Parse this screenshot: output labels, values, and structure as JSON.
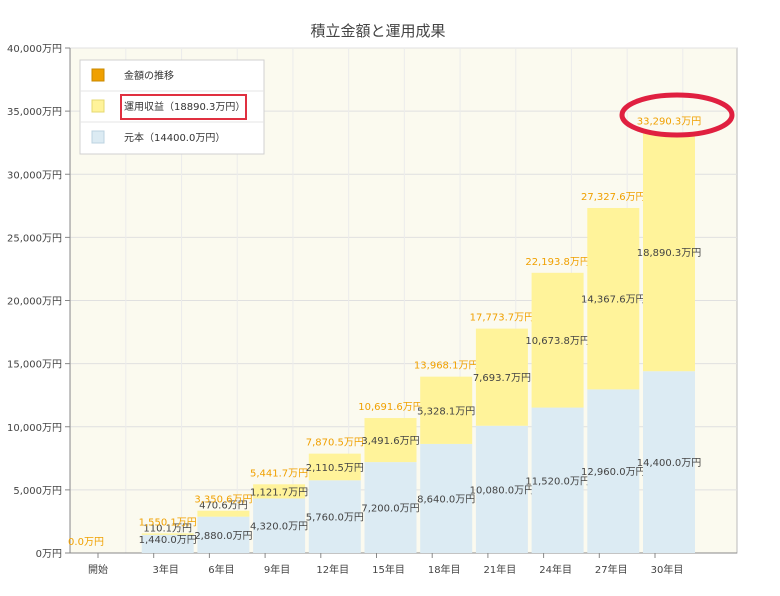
{
  "chart_data": {
    "type": "bar",
    "stacked": true,
    "title": "積立金額と運用成果",
    "categories": [
      "開始",
      "3年目",
      "6年目",
      "9年目",
      "12年目",
      "15年目",
      "18年目",
      "21年目",
      "24年目",
      "27年目",
      "30年目"
    ],
    "series": [
      {
        "name": "元本（14400.0万円）",
        "color": "#dcebf3",
        "values": [
          0,
          1440.0,
          2880.0,
          4320.0,
          5760.0,
          7200.0,
          8640.0,
          10080.0,
          11520.0,
          12960.0,
          14400.0
        ],
        "labels": [
          "",
          "1,440.0万円",
          "2,880.0万円",
          "4,320.0万円",
          "5,760.0万円",
          "7,200.0万円",
          "8,640.0万円",
          "10,080.0万円",
          "11,520.0万円",
          "12,960.0万円",
          "14,400.0万円"
        ]
      },
      {
        "name": "運用収益（18890.3万円）",
        "color": "#fff39a",
        "values": [
          0,
          110.1,
          470.6,
          1121.7,
          2110.5,
          3491.6,
          5328.1,
          7693.7,
          10673.8,
          14367.6,
          18890.3
        ],
        "labels": [
          "",
          "110.1万円",
          "470.6万円",
          "1,121.7万円",
          "2,110.5万円",
          "3,491.6万円",
          "5,328.1万円",
          "7,693.7万円",
          "10,673.8万円",
          "14,367.6万円",
          "18,890.3万円"
        ]
      }
    ],
    "totals": [
      0.0,
      1550.1,
      3350.6,
      5441.7,
      7870.5,
      10691.6,
      13968.1,
      17773.7,
      22193.8,
      27327.6,
      33290.3
    ],
    "total_labels": [
      "0.0万円",
      "1,550.1万円",
      "3,350.6万円",
      "5,441.7万円",
      "7,870.5万円",
      "10,691.6万円",
      "13,968.1万円",
      "17,773.7万円",
      "22,193.8万円",
      "27,327.6万円",
      "33,290.3万円"
    ],
    "total_series_name": "金額の推移",
    "total_color": "#f0a000",
    "y_ticks": [
      0,
      5000,
      10000,
      15000,
      20000,
      25000,
      30000,
      35000,
      40000
    ],
    "y_tick_labels": [
      "0万円",
      "5,000万円",
      "10,000万円",
      "15,000万円",
      "20,000万円",
      "25,000万円",
      "30,000万円",
      "35,000万円",
      "40,000万円"
    ],
    "ylim": [
      0,
      40000
    ],
    "grid": true,
    "legend_position": "top-left",
    "highlight": {
      "legend_item": "運用収益（18890.3万円）",
      "legend_box_color": "#e03040",
      "ellipse_color": "#e02040",
      "ellipse_target": "30年目"
    }
  }
}
